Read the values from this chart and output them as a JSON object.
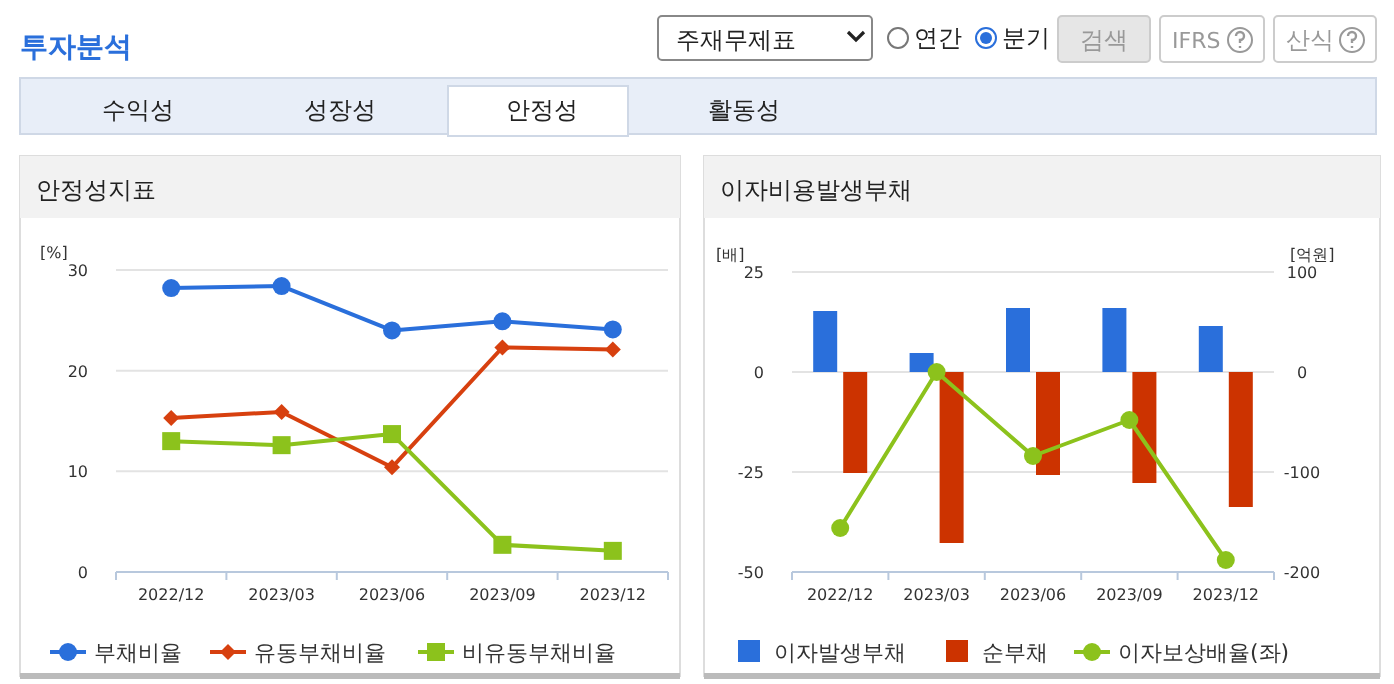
{
  "chart_data": [
    {
      "type": "other",
      "title": "투자분석",
      "annotations": [
        "주재무제표",
        "연간",
        "분기",
        "검색",
        "IFRS",
        "산식",
        "수익성",
        "성장성",
        "안정성",
        "활동성"
      ]
    },
    {
      "type": "line",
      "title": "안정성지표",
      "ylabel": "[%]",
      "categories": [
        "2022/12",
        "2023/03",
        "2023/06",
        "2023/09",
        "2023/12"
      ],
      "ylim": [
        0,
        30
      ],
      "yticks": [
        0,
        10,
        20,
        30
      ],
      "grid": "y",
      "legend": "bottom",
      "series": [
        {
          "name": "부채비율",
          "color": "#2a6fdb",
          "marker": "circle",
          "values": [
            28.2,
            28.4,
            24.0,
            24.9,
            24.1
          ]
        },
        {
          "name": "유동부채비율",
          "color": "#d7400f",
          "marker": "diamond",
          "values": [
            15.3,
            15.9,
            10.4,
            22.3,
            22.1
          ]
        },
        {
          "name": "비유동부채비율",
          "color": "#8cc21c",
          "marker": "square",
          "values": [
            13.0,
            12.6,
            13.7,
            2.7,
            2.1
          ]
        }
      ]
    },
    {
      "type": "bar",
      "title": "이자비용발생부채",
      "ylabel": "[배]",
      "y2label": "[억원]",
      "categories": [
        "2022/12",
        "2023/03",
        "2023/06",
        "2023/09",
        "2023/12"
      ],
      "ylim": [
        -50,
        25
      ],
      "yticks": [
        -50,
        -25,
        0,
        25
      ],
      "y2lim": [
        -200,
        100
      ],
      "y2ticks": [
        -200,
        -100,
        0,
        100
      ],
      "grid": "y",
      "legend": "bottom",
      "series": [
        {
          "name": "이자발생부채",
          "color": "#2a6fdb",
          "axis": "y2",
          "values": [
            61,
            19,
            64,
            64,
            46
          ]
        },
        {
          "name": "순부채",
          "color": "#cc3300",
          "axis": "y2",
          "values": [
            -101,
            -171,
            -103,
            -111,
            -135
          ]
        },
        {
          "name": "이자보상배율(좌)",
          "type": "line",
          "color": "#8cc21c",
          "marker": "circle",
          "values": [
            -39,
            0,
            -21,
            -12,
            -47
          ]
        }
      ]
    }
  ]
}
